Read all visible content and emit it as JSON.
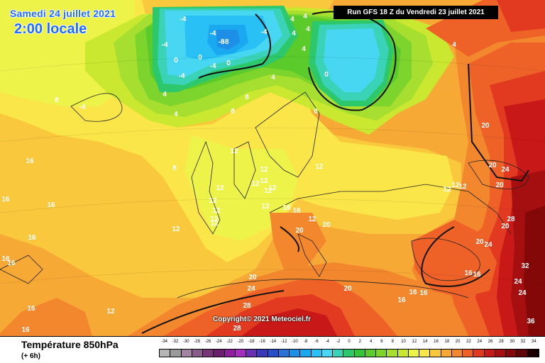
{
  "header": {
    "date": "Samedi 24 juillet 2021",
    "time": "2:00 locale",
    "run": "Run GFS 18 Z du Vendredi 23 juillet 2021"
  },
  "copyright": "Copyright© 2021 Meteociel.fr",
  "footer": {
    "title": "Température 850hPa",
    "subtitle": "(+ 6h)"
  },
  "scale": {
    "labels": [
      "-34",
      "-32",
      "-30",
      "-28",
      "-26",
      "-24",
      "-22",
      "-20",
      "-18",
      "-16",
      "-14",
      "-12",
      "-10",
      "-8",
      "-6",
      "-4",
      "-2",
      "0",
      "2",
      "4",
      "6",
      "8",
      "10",
      "12",
      "14",
      "16",
      "18",
      "20",
      "22",
      "24",
      "26",
      "28",
      "30",
      "32",
      "34"
    ],
    "colors": [
      "#b5b5b5",
      "#9a9a9a",
      "#a484a4",
      "#8a5c8a",
      "#783678",
      "#6c1f6c",
      "#8f1e9e",
      "#a62ebd",
      "#6a2fb3",
      "#3a3ab8",
      "#2750c8",
      "#2a73da",
      "#1d8fe6",
      "#1aa8f0",
      "#28c0f5",
      "#47d7f2",
      "#3ad3b8",
      "#2ec86c",
      "#33c43a",
      "#5acb2a",
      "#7cd42c",
      "#a6df2f",
      "#c9e82f",
      "#eef34a",
      "#fbe64a",
      "#f9c83c",
      "#f7a935",
      "#f3872e",
      "#ee6228",
      "#e23a20",
      "#c81818",
      "#a50f10",
      "#840808",
      "#600505",
      "#1a0000"
    ]
  },
  "labels": [
    {
      "t": "-4",
      "c": "w"
    },
    {
      "t": "-8",
      "c": "w"
    },
    {
      "t": "-8",
      "c": "w"
    },
    {
      "t": "-4",
      "c": "w"
    },
    {
      "t": "-4",
      "c": "w"
    },
    {
      "t": "-4",
      "c": "w"
    },
    {
      "t": "0",
      "c": "w"
    },
    {
      "t": "0",
      "c": "w"
    },
    {
      "t": "-4",
      "c": "w"
    },
    {
      "t": "0",
      "c": "w"
    },
    {
      "t": "-4",
      "c": "w"
    },
    {
      "t": "0",
      "c": "w"
    },
    {
      "t": "4",
      "c": "w"
    },
    {
      "t": "4",
      "c": "w"
    },
    {
      "t": "4",
      "c": "w"
    },
    {
      "t": "4",
      "c": "w"
    },
    {
      "t": "4",
      "c": "w"
    },
    {
      "t": "4",
      "c": "w"
    },
    {
      "t": "4",
      "c": "w"
    },
    {
      "t": "4",
      "c": "w"
    },
    {
      "t": "0",
      "c": "w"
    },
    {
      "t": "4",
      "c": "w"
    },
    {
      "t": "8",
      "c": "w"
    },
    {
      "t": "8",
      "c": "w"
    },
    {
      "t": "8",
      "c": "w"
    },
    {
      "t": "12",
      "c": "w"
    },
    {
      "t": "12",
      "c": "w"
    },
    {
      "t": "12",
      "c": "w"
    },
    {
      "t": "12",
      "c": "w"
    },
    {
      "t": "12",
      "c": "w"
    },
    {
      "t": "12",
      "c": "w"
    },
    {
      "t": "12",
      "c": "w"
    },
    {
      "t": "12",
      "c": "w"
    },
    {
      "t": "12",
      "c": "w"
    },
    {
      "t": "12",
      "c": "w"
    },
    {
      "t": "12",
      "c": "w"
    },
    {
      "t": "16",
      "c": "w"
    },
    {
      "t": "16",
      "c": "w"
    },
    {
      "t": "16",
      "c": "w"
    },
    {
      "t": "16",
      "c": "w"
    },
    {
      "t": "16",
      "c": "w"
    },
    {
      "t": "16",
      "c": "w"
    },
    {
      "t": "16",
      "c": "w"
    },
    {
      "t": "16",
      "c": "w"
    },
    {
      "t": "16",
      "c": "w"
    },
    {
      "t": "16",
      "c": "w"
    },
    {
      "t": "20",
      "c": "w"
    },
    {
      "t": "20",
      "c": "w"
    },
    {
      "t": "20",
      "c": "w"
    },
    {
      "t": "20",
      "c": "w"
    },
    {
      "t": "20",
      "c": "w"
    },
    {
      "t": "20",
      "c": "w"
    },
    {
      "t": "20",
      "c": "w"
    },
    {
      "t": "20",
      "c": "w"
    },
    {
      "t": "24",
      "c": "w"
    },
    {
      "t": "24",
      "c": "w"
    },
    {
      "t": "24",
      "c": "w"
    },
    {
      "t": "24",
      "c": "w"
    },
    {
      "t": "24",
      "c": "w"
    },
    {
      "t": "28",
      "c": "w"
    },
    {
      "t": "28",
      "c": "w"
    },
    {
      "t": "28",
      "c": "w"
    },
    {
      "t": "32",
      "c": "w"
    },
    {
      "t": "36",
      "c": "w"
    },
    {
      "t": "16",
      "c": "w"
    },
    {
      "t": "16",
      "c": "w"
    },
    {
      "t": "12",
      "c": "w"
    },
    {
      "t": "12",
      "c": "w"
    },
    {
      "t": "12",
      "c": "w"
    },
    {
      "t": "12",
      "c": "w"
    },
    {
      "t": "12",
      "c": "w"
    },
    {
      "t": "12",
      "c": "w"
    },
    {
      "t": "12",
      "c": "w"
    },
    {
      "t": "12",
      "c": "w"
    },
    {
      "t": "8",
      "c": "w"
    },
    {
      "t": "-4",
      "c": "w"
    },
    {
      "t": "4",
      "c": "w"
    },
    {
      "t": "16",
      "c": "w"
    },
    {
      "t": "16",
      "c": "w"
    },
    {
      "t": "16",
      "c": "w"
    },
    {
      "t": "20",
      "c": "w"
    }
  ]
}
